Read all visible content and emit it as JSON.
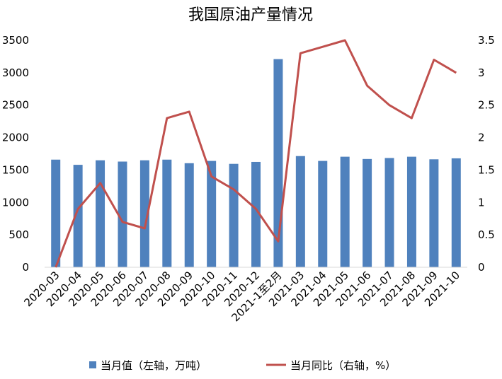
{
  "chart_data": {
    "type": "bar+line",
    "title": "我国原油产量情况",
    "categories": [
      "2020-03",
      "2020-04",
      "2020-05",
      "2020-06",
      "2020-07",
      "2020-08",
      "2020-09",
      "2020-10",
      "2020-11",
      "2020-12",
      "2021-1至2月",
      "2021-03",
      "2021-04",
      "2021-05",
      "2021-06",
      "2021-07",
      "2021-08",
      "2021-09",
      "2021-10"
    ],
    "series": [
      {
        "name": "当月值（左轴，万吨）",
        "type": "bar",
        "axis": "left",
        "color": "#4F81BD",
        "values": [
          1660,
          1580,
          1650,
          1630,
          1650,
          1660,
          1605,
          1640,
          1595,
          1625,
          3210,
          1715,
          1640,
          1705,
          1670,
          1685,
          1705,
          1665,
          1680
        ]
      },
      {
        "name": "当月同比（右轴，%）",
        "type": "line",
        "axis": "right",
        "color": "#C0504D",
        "values": [
          0.0,
          0.9,
          1.3,
          0.7,
          0.6,
          2.3,
          2.4,
          1.4,
          1.2,
          0.9,
          0.4,
          3.3,
          3.4,
          3.5,
          2.8,
          2.5,
          2.3,
          3.2,
          3.0
        ]
      }
    ],
    "y_left": {
      "min": 0,
      "max": 3500,
      "ticks": [
        "0",
        "500",
        "1000",
        "1500",
        "2000",
        "2500",
        "3000",
        "3500"
      ]
    },
    "y_right": {
      "min": 0,
      "max": 3.5,
      "ticks": [
        "0",
        "0.5",
        "1",
        "1.5",
        "2",
        "2.5",
        "3",
        "3.5"
      ]
    },
    "grid": false,
    "legend_position": "bottom"
  }
}
